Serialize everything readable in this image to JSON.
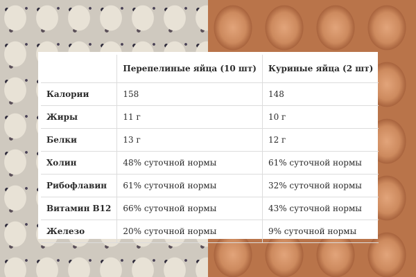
{
  "table": {
    "headers": [
      "",
      "Перепелиные яйца (10 шт)",
      "Куриные яйца (2 шт)"
    ],
    "rows": [
      {
        "label": "Калории",
        "quail": "158",
        "chicken": "148"
      },
      {
        "label": "Жиры",
        "quail": "11 г",
        "chicken": "10 г"
      },
      {
        "label": "Белки",
        "quail": "13 г",
        "chicken": "12 г"
      },
      {
        "label": "Холин",
        "quail": "48% суточной нормы",
        "chicken": "61% суточной нормы"
      },
      {
        "label": "Рибофлавин",
        "quail": "61% суточной нормы",
        "chicken": "32% суточной нормы"
      },
      {
        "label": "Витамин В12",
        "quail": "66% суточной нормы",
        "chicken": "43% суточной нормы"
      },
      {
        "label": "Железо",
        "quail": "20% суточной нормы",
        "chicken": "9% суточной нормы"
      }
    ]
  }
}
